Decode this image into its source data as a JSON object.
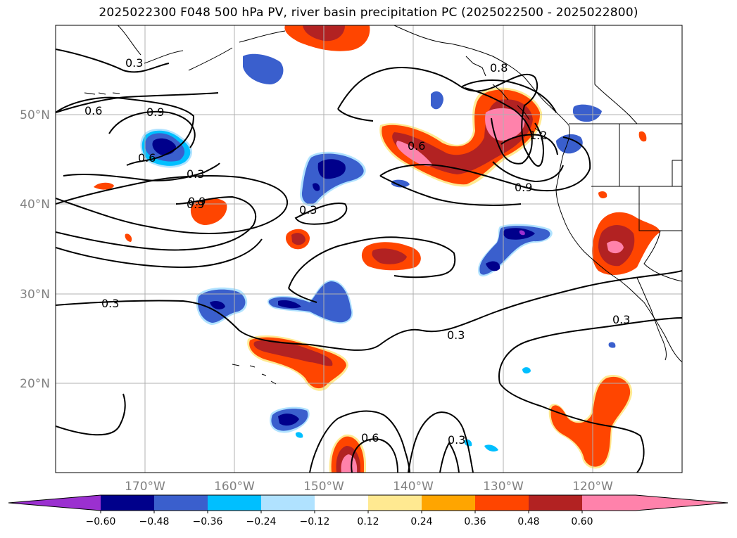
{
  "title": "2025022300 F048 500 hPa PV, river basin precipitation PC (2025022500 - 2025022800)",
  "map": {
    "lon_labels": [
      "170°W",
      "160°W",
      "150°W",
      "140°W",
      "130°W",
      "120°W"
    ],
    "lat_labels": [
      "50°N",
      "40°N",
      "30°N",
      "20°N"
    ],
    "contour_labels": [
      "0.3",
      "0.6",
      "0.9",
      "0.6",
      "0.9",
      "0.3",
      "0.9",
      "0.3",
      "0.6",
      "0.8",
      "1.2",
      "0.9",
      "0.3",
      "0.3",
      "0.6",
      "0.3",
      "0.3"
    ]
  },
  "colorbar": {
    "colors": [
      "#9b30d0",
      "#00008b",
      "#3a5fcd",
      "#00bfff",
      "#b0e2ff",
      "#ffffff",
      "#ffe991",
      "#ffa500",
      "#ff4500",
      "#b22222",
      "#ff82ab",
      "#ff82ab"
    ],
    "tick_labels": [
      "−0.60",
      "−0.48",
      "−0.36",
      "−0.24",
      "−0.12",
      "0.12",
      "0.24",
      "0.36",
      "0.48",
      "0.60"
    ]
  },
  "colors": {
    "deep_purple": "#9b30d0",
    "navy": "#00008b",
    "royal_blue": "#3a5fcd",
    "sky": "#00bfff",
    "pale_blue": "#b0e2ff",
    "yellow": "#ffe991",
    "orange": "#ffa500",
    "red_orange": "#ff4500",
    "firebrick": "#b22222",
    "pink": "#ff82ab",
    "grid": "#b0b0b0",
    "label_gray": "#808080"
  }
}
